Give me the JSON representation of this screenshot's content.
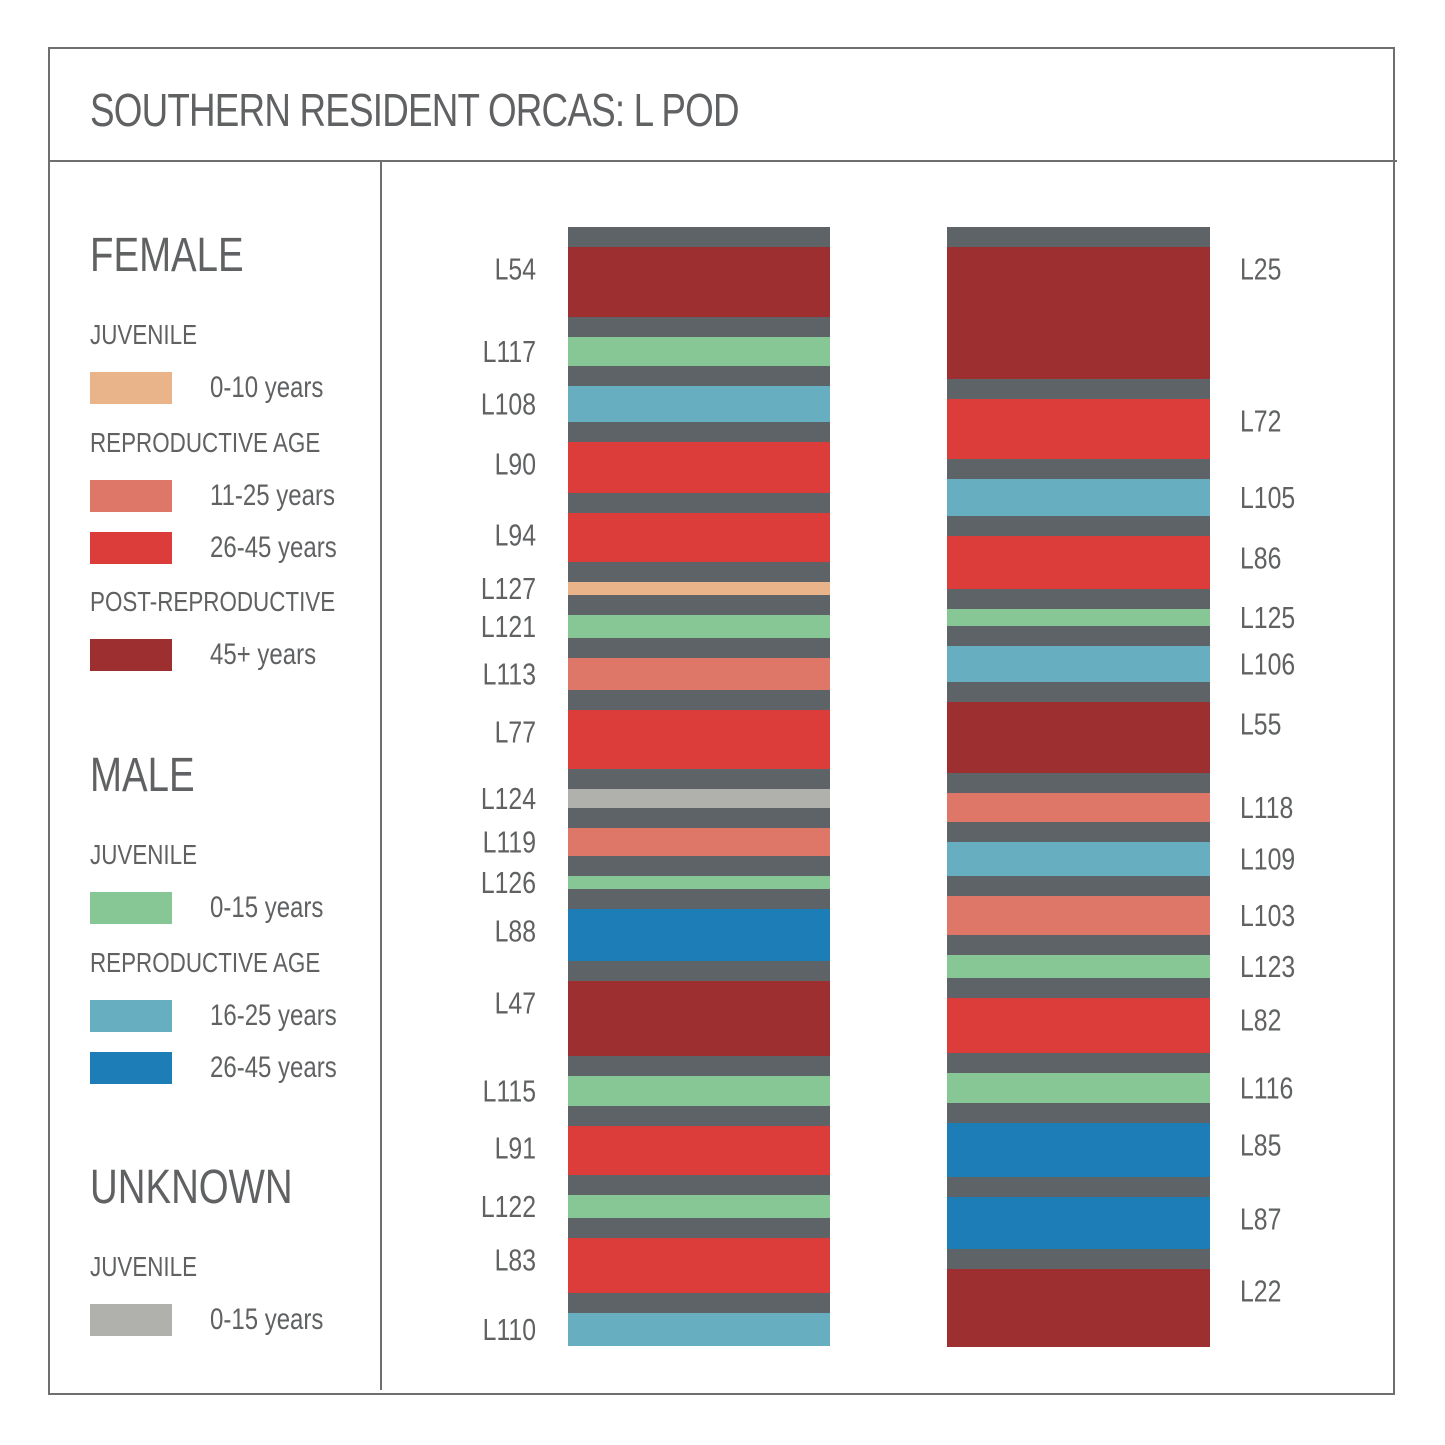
{
  "title": "SOUTHERN RESIDENT ORCAS: L POD",
  "colors": {
    "frame": "#6d6f71",
    "separator": "#5d6366",
    "text": "#5f6163",
    "female_juvenile": "#e9b489",
    "female_repro_11_25": "#df7768",
    "female_repro_26_45": "#dc3d3a",
    "female_post_repro": "#9d2f30",
    "male_juvenile": "#87c796",
    "male_repro_16_25": "#67aec1",
    "male_repro_26_45": "#1d7db7",
    "unknown_juvenile": "#b0b1ac"
  },
  "legend": {
    "female": {
      "heading": "FEMALE",
      "juvenile_label": "JUVENILE",
      "juvenile_range": "0-10 years",
      "repro_label": "REPRODUCTIVE AGE",
      "repro_range_1": "11-25 years",
      "repro_range_2": "26-45 years",
      "post_label": "POST-REPRODUCTIVE",
      "post_range": "45+ years"
    },
    "male": {
      "heading": "MALE",
      "juvenile_label": "JUVENILE",
      "juvenile_range": "0-15 years",
      "repro_label": "REPRODUCTIVE AGE",
      "repro_range_1": "16-25 years",
      "repro_range_2": "26-45 years"
    },
    "unknown": {
      "heading": "UNKNOWN",
      "juvenile_label": "JUVENILE",
      "juvenile_range": "0-15 years"
    }
  },
  "chart_data": {
    "type": "stacked_bar",
    "title": "SOUTHERN RESIDENT ORCAS: L POD",
    "columns": [
      {
        "label_side": "left",
        "members": [
          {
            "id": "L54",
            "category": "female_post_repro",
            "size": 70
          },
          {
            "id": "L117",
            "category": "male_juvenile",
            "size": 29
          },
          {
            "id": "L108",
            "category": "male_repro_16_25",
            "size": 36
          },
          {
            "id": "L90",
            "category": "female_repro_26_45",
            "size": 51
          },
          {
            "id": "L94",
            "category": "female_repro_26_45",
            "size": 49
          },
          {
            "id": "L127",
            "category": "female_juvenile",
            "size": 13
          },
          {
            "id": "L121",
            "category": "male_juvenile",
            "size": 23
          },
          {
            "id": "L113",
            "category": "female_repro_11_25",
            "size": 32
          },
          {
            "id": "L77",
            "category": "female_repro_26_45",
            "size": 59
          },
          {
            "id": "L124",
            "category": "unknown_juvenile",
            "size": 19
          },
          {
            "id": "L119",
            "category": "female_repro_11_25",
            "size": 28
          },
          {
            "id": "L126",
            "category": "male_juvenile",
            "size": 13
          },
          {
            "id": "L88",
            "category": "male_repro_26_45",
            "size": 52
          },
          {
            "id": "L47",
            "category": "female_post_repro",
            "size": 75
          },
          {
            "id": "L115",
            "category": "male_juvenile",
            "size": 30
          },
          {
            "id": "L91",
            "category": "female_repro_26_45",
            "size": 49
          },
          {
            "id": "L122",
            "category": "male_juvenile",
            "size": 23
          },
          {
            "id": "L83",
            "category": "female_repro_26_45",
            "size": 55
          },
          {
            "id": "L110",
            "category": "male_repro_16_25",
            "size": 33
          }
        ]
      },
      {
        "label_side": "right",
        "members": [
          {
            "id": "L25",
            "category": "female_post_repro",
            "size": 132
          },
          {
            "id": "L72",
            "category": "female_repro_26_45",
            "size": 60
          },
          {
            "id": "L105",
            "category": "male_repro_16_25",
            "size": 37
          },
          {
            "id": "L86",
            "category": "female_repro_26_45",
            "size": 53
          },
          {
            "id": "L125",
            "category": "male_juvenile",
            "size": 17
          },
          {
            "id": "L106",
            "category": "male_repro_16_25",
            "size": 36
          },
          {
            "id": "L55",
            "category": "female_post_repro",
            "size": 71
          },
          {
            "id": "L118",
            "category": "female_repro_11_25",
            "size": 29
          },
          {
            "id": "L109",
            "category": "male_repro_16_25",
            "size": 34
          },
          {
            "id": "L103",
            "category": "female_repro_11_25",
            "size": 39
          },
          {
            "id": "L123",
            "category": "male_juvenile",
            "size": 23
          },
          {
            "id": "L82",
            "category": "female_repro_26_45",
            "size": 55
          },
          {
            "id": "L116",
            "category": "male_juvenile",
            "size": 30
          },
          {
            "id": "L85",
            "category": "male_repro_26_45",
            "size": 54
          },
          {
            "id": "L87",
            "category": "male_repro_26_45",
            "size": 52
          },
          {
            "id": "L22",
            "category": "female_post_repro",
            "size": 78
          }
        ]
      }
    ]
  }
}
